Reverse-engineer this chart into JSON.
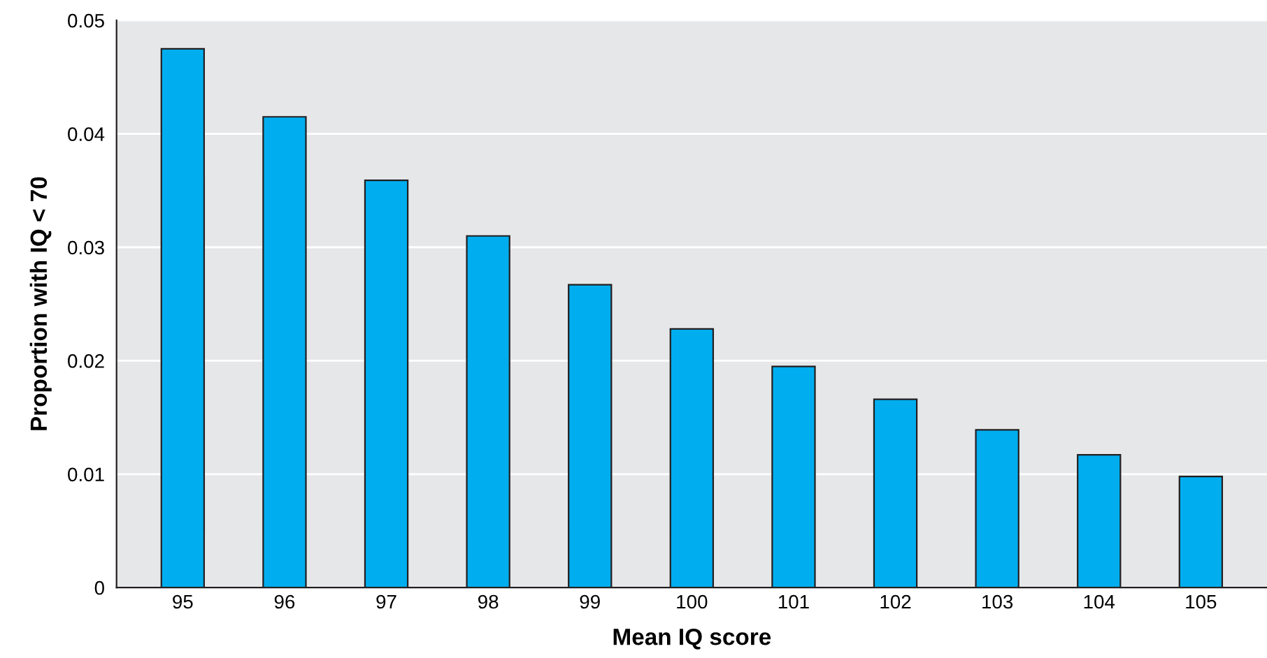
{
  "chart_data": {
    "type": "bar",
    "xlabel": "Mean IQ score",
    "ylabel": "Proportion with IQ < 70",
    "categories": [
      "95",
      "96",
      "97",
      "98",
      "99",
      "100",
      "101",
      "102",
      "103",
      "104",
      "105"
    ],
    "values": [
      0.0475,
      0.0415,
      0.0359,
      0.031,
      0.0267,
      0.0228,
      0.0195,
      0.0166,
      0.0139,
      0.0117,
      0.0098
    ],
    "color": "#00aeef",
    "ylim": [
      0,
      0.05
    ],
    "yticks": [
      {
        "value": 0,
        "label": "0"
      },
      0.01,
      0.02,
      0.03,
      0.04,
      0.05
    ],
    "grid": "y"
  }
}
